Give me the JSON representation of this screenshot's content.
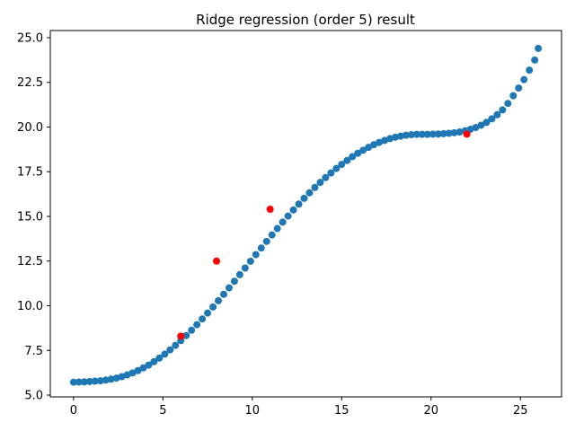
{
  "chart_data": {
    "type": "scatter",
    "title": "Ridge regression (order 5) result",
    "xlabel": "",
    "ylabel": "",
    "xlim": [
      -1.3,
      27.3
    ],
    "ylim": [
      4.9,
      25.4
    ],
    "grid": false,
    "x_ticks": [
      0,
      5,
      10,
      15,
      20,
      25
    ],
    "y_ticks": [
      5.0,
      7.5,
      10.0,
      12.5,
      15.0,
      17.5,
      20.0,
      22.5,
      25.0
    ],
    "x_tick_labels": [
      "0",
      "5",
      "10",
      "15",
      "20",
      "25"
    ],
    "y_tick_labels": [
      "5.0",
      "7.5",
      "10.0",
      "12.5",
      "15.0",
      "17.5",
      "20.0",
      "22.5",
      "25.0"
    ],
    "series": [
      {
        "color": "#1f77b4",
        "x": [
          0,
          0.3,
          0.6,
          0.9,
          1.2,
          1.5,
          1.8,
          2.1,
          2.4,
          2.7,
          3,
          3.3,
          3.6,
          3.9,
          4.2,
          4.5,
          4.8,
          5.1,
          5.4,
          5.7,
          6,
          6.3,
          6.6,
          6.9,
          7.2,
          7.5,
          7.8,
          8.1,
          8.4,
          8.7,
          9,
          9.3,
          9.6,
          9.9,
          10.2,
          10.5,
          10.8,
          11.1,
          11.4,
          11.7,
          12,
          12.3,
          12.6,
          12.9,
          13.2,
          13.5,
          13.8,
          14.1,
          14.4,
          14.7,
          15,
          15.3,
          15.6,
          15.9,
          16.2,
          16.5,
          16.8,
          17.1,
          17.4,
          17.7,
          18,
          18.3,
          18.6,
          18.9,
          19.2,
          19.5,
          19.8,
          20.1,
          20.4,
          20.7,
          21,
          21.3,
          21.6,
          21.9,
          22.2,
          22.5,
          22.8,
          23.1,
          23.4,
          23.7,
          24,
          24.3,
          24.6,
          24.9,
          25.2,
          25.5,
          25.8,
          26
        ],
        "y": [
          5.72,
          5.73,
          5.74,
          5.76,
          5.78,
          5.8,
          5.84,
          5.89,
          5.95,
          6.03,
          6.13,
          6.24,
          6.37,
          6.52,
          6.68,
          6.87,
          7.07,
          7.29,
          7.53,
          7.78,
          8.05,
          8.33,
          8.63,
          8.94,
          9.26,
          9.59,
          9.93,
          10.28,
          10.64,
          11.0,
          11.37,
          11.74,
          12.11,
          12.49,
          12.86,
          13.23,
          13.6,
          13.96,
          14.32,
          14.68,
          15.02,
          15.36,
          15.69,
          16.01,
          16.32,
          16.62,
          16.9,
          17.17,
          17.43,
          17.68,
          17.91,
          18.13,
          18.34,
          18.53,
          18.7,
          18.86,
          19.01,
          19.14,
          19.25,
          19.35,
          19.43,
          19.49,
          19.54,
          19.57,
          19.59,
          19.59,
          19.59,
          19.6,
          19.61,
          19.63,
          19.65,
          19.68,
          19.72,
          19.79,
          19.87,
          19.97,
          20.1,
          20.26,
          20.46,
          20.69,
          20.96,
          21.32,
          21.75,
          22.18,
          22.65,
          23.18,
          23.75,
          24.4
        ]
      },
      {
        "color": "#ff0000",
        "x": [
          6,
          8,
          11,
          22
        ],
        "y": [
          8.3,
          12.5,
          15.4,
          19.6
        ]
      }
    ]
  }
}
